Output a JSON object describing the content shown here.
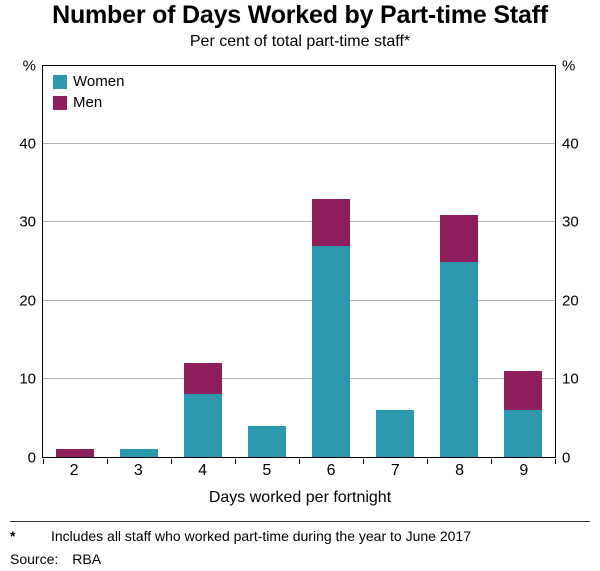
{
  "chart_data": {
    "type": "bar",
    "stacked": true,
    "title": "Number of Days Worked by Part-time Staff",
    "subtitle": "Per cent of total part-time staff*",
    "categories": [
      "2",
      "3",
      "4",
      "5",
      "6",
      "7",
      "8",
      "9"
    ],
    "series": [
      {
        "name": "Women",
        "color": "#2a99ac",
        "values": [
          0,
          1,
          8,
          4,
          27,
          6,
          25,
          6
        ]
      },
      {
        "name": "Men",
        "color": "#8e1f5c",
        "values": [
          1,
          0,
          4,
          0,
          6,
          0,
          6,
          5
        ]
      }
    ],
    "totals": [
      1,
      1,
      12,
      4,
      33,
      6,
      31,
      11
    ],
    "xlabel": "Days worked per fortnight",
    "y_unit": "%",
    "yticks": [
      0,
      10,
      20,
      30,
      40
    ],
    "ylim": [
      0,
      50
    ],
    "grid": true,
    "legend_position": "top-left"
  },
  "footnotes": {
    "marker": "*",
    "note": "Includes all staff who worked part-time during the year to June 2017",
    "source_label": "Source:",
    "source": "RBA"
  }
}
